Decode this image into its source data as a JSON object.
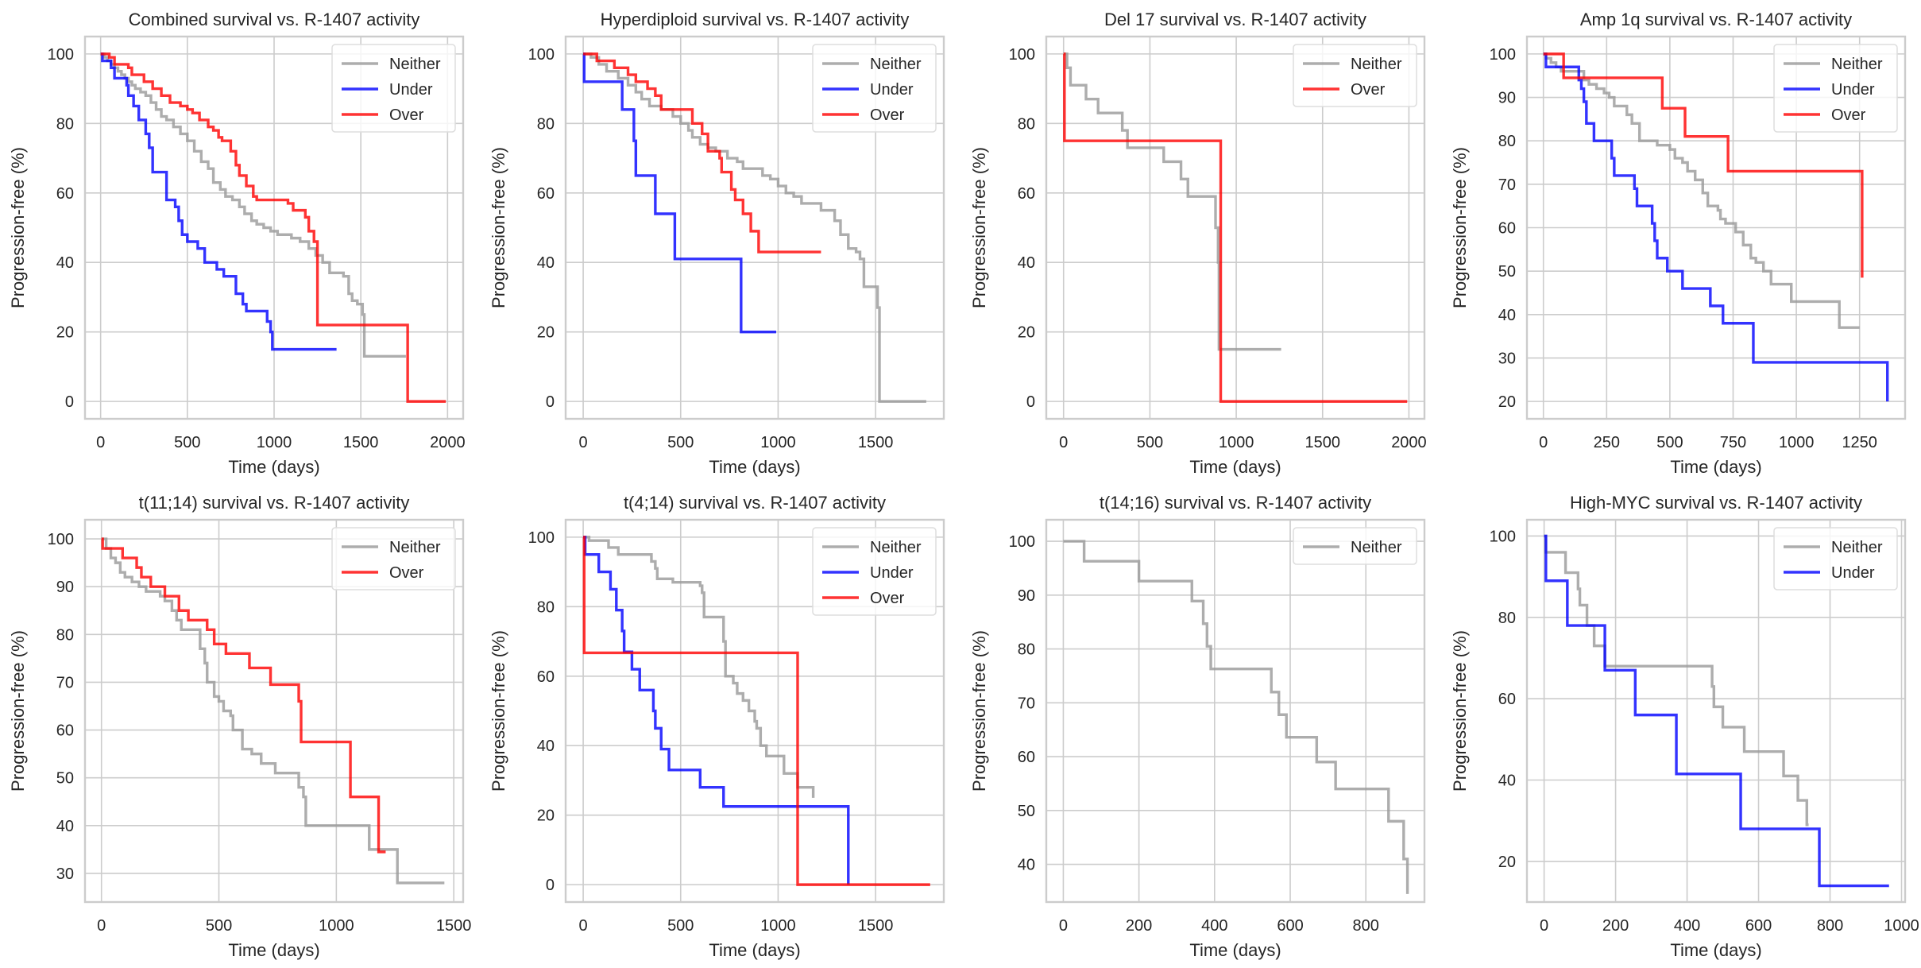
{
  "chart_data": [
    {
      "type": "line",
      "title": "Combined survival vs. R-1407 activity",
      "xlabel": "Time (days)",
      "ylabel": "Progression-free (%)",
      "xlim": [
        -90,
        2090
      ],
      "ylim": [
        -5,
        105
      ],
      "xticks": [
        0,
        500,
        1000,
        1500,
        2000
      ],
      "yticks": [
        0,
        20,
        40,
        60,
        80,
        100
      ],
      "legend": "top-right",
      "grid": true,
      "series": [
        {
          "name": "Neither",
          "color": "#999999",
          "x": [
            0,
            20,
            40,
            60,
            80,
            100,
            120,
            140,
            160,
            180,
            200,
            230,
            260,
            290,
            320,
            350,
            380,
            420,
            460,
            500,
            540,
            580,
            620,
            650,
            690,
            720,
            760,
            800,
            830,
            870,
            900,
            940,
            980,
            1020,
            1060,
            1100,
            1150,
            1200,
            1240,
            1280,
            1320,
            1360,
            1400,
            1430,
            1450,
            1480,
            1510,
            1520,
            1760
          ],
          "y": [
            100,
            99,
            98,
            97,
            96,
            95,
            94,
            93,
            92,
            91,
            90,
            89,
            88,
            86,
            84,
            82,
            81,
            79,
            77,
            75,
            72,
            69,
            67,
            63,
            61,
            59,
            58,
            56,
            54,
            52,
            51,
            50,
            49,
            48,
            48,
            47,
            46,
            44,
            42,
            40,
            37,
            37,
            36,
            31,
            29,
            28,
            25,
            13,
            13
          ]
        },
        {
          "name": "Under",
          "color": "#0000ff",
          "x": [
            0,
            10,
            60,
            80,
            150,
            160,
            190,
            220,
            260,
            280,
            300,
            370,
            380,
            430,
            450,
            470,
            500,
            560,
            600,
            670,
            710,
            780,
            820,
            840,
            960,
            980,
            990,
            1360
          ],
          "y": [
            100,
            98,
            96,
            93,
            91,
            88,
            85,
            81,
            77,
            73,
            66,
            66,
            58,
            56,
            52,
            48,
            46,
            44,
            40,
            38,
            36,
            31,
            28,
            26,
            23,
            20,
            15,
            15
          ]
        },
        {
          "name": "Over",
          "color": "#ff0000",
          "x": [
            0,
            50,
            80,
            160,
            180,
            250,
            300,
            350,
            400,
            460,
            500,
            530,
            570,
            620,
            650,
            680,
            700,
            750,
            780,
            800,
            840,
            880,
            900,
            1080,
            1110,
            1180,
            1200,
            1230,
            1250,
            1770,
            1990
          ],
          "y": [
            100,
            99,
            97,
            96,
            94,
            92,
            90,
            88,
            86,
            85,
            84,
            83,
            81,
            79,
            78,
            76,
            75,
            72,
            68,
            65,
            62,
            59,
            58,
            57,
            55,
            53,
            49,
            46,
            22,
            0,
            0
          ]
        }
      ]
    },
    {
      "type": "line",
      "title": "Hyperdiploid survival vs. R-1407 activity",
      "xlabel": "Time (days)",
      "ylabel": "Progression-free (%)",
      "xlim": [
        -90,
        1850
      ],
      "ylim": [
        -5,
        105
      ],
      "xticks": [
        0,
        500,
        1000,
        1500
      ],
      "yticks": [
        0,
        20,
        40,
        60,
        80,
        100
      ],
      "legend": "top-right",
      "grid": true,
      "series": [
        {
          "name": "Neither",
          "color": "#999999",
          "x": [
            0,
            40,
            80,
            120,
            180,
            230,
            270,
            300,
            340,
            400,
            460,
            500,
            540,
            560,
            600,
            640,
            680,
            740,
            790,
            820,
            880,
            920,
            960,
            1000,
            1040,
            1080,
            1120,
            1180,
            1220,
            1290,
            1320,
            1360,
            1400,
            1420,
            1440,
            1500,
            1510,
            1520,
            1760
          ],
          "y": [
            100,
            99,
            97,
            95,
            93,
            91,
            89,
            87,
            85,
            84,
            82,
            80,
            78,
            76,
            74,
            73,
            72,
            70,
            69,
            67,
            67,
            65,
            64,
            62,
            60,
            59,
            57,
            57,
            55,
            52,
            48,
            44,
            43,
            41,
            33,
            33,
            27,
            0,
            0
          ]
        },
        {
          "name": "Under",
          "color": "#0000ff",
          "x": [
            0,
            5,
            200,
            260,
            270,
            370,
            470,
            810,
            990
          ],
          "y": [
            100,
            92,
            84,
            75,
            65,
            54,
            41,
            20,
            20
          ]
        },
        {
          "name": "Over",
          "color": "#ff0000",
          "x": [
            0,
            70,
            160,
            230,
            270,
            330,
            370,
            400,
            520,
            560,
            610,
            640,
            700,
            710,
            760,
            780,
            820,
            860,
            900,
            1220
          ],
          "y": [
            100,
            98,
            96,
            94,
            92,
            90,
            88,
            84,
            84,
            80,
            77,
            72,
            70,
            66,
            61,
            58,
            54,
            49,
            43,
            43
          ]
        }
      ]
    },
    {
      "type": "line",
      "title": "Del 17 survival vs. R-1407 activity",
      "xlabel": "Time (days)",
      "ylabel": "Progression-free (%)",
      "xlim": [
        -100,
        2090
      ],
      "ylim": [
        -5,
        105
      ],
      "xticks": [
        0,
        500,
        1000,
        1500,
        2000
      ],
      "yticks": [
        0,
        20,
        40,
        60,
        80,
        100
      ],
      "legend": "top-right",
      "grid": true,
      "series": [
        {
          "name": "Neither",
          "color": "#999999",
          "x": [
            0,
            20,
            40,
            130,
            200,
            340,
            370,
            580,
            680,
            720,
            880,
            895,
            900,
            1260
          ],
          "y": [
            100,
            96,
            91,
            87,
            83,
            78,
            73,
            69,
            64,
            59,
            50,
            40,
            15,
            15
          ]
        },
        {
          "name": "Over",
          "color": "#ff0000",
          "x": [
            0,
            5,
            910,
            1990
          ],
          "y": [
            100,
            75,
            0,
            0
          ]
        }
      ]
    },
    {
      "type": "line",
      "title": "Amp 1q survival vs. R-1407 activity",
      "xlabel": "Time (days)",
      "ylabel": "Progression-free (%)",
      "xlim": [
        -65,
        1430
      ],
      "ylim": [
        16,
        104
      ],
      "xticks": [
        0,
        250,
        500,
        750,
        1000,
        1250
      ],
      "yticks": [
        20,
        30,
        40,
        50,
        60,
        70,
        80,
        90,
        100
      ],
      "legend": "top-right",
      "grid": true,
      "series": [
        {
          "name": "Neither",
          "color": "#999999",
          "x": [
            0,
            10,
            30,
            50,
            70,
            140,
            160,
            180,
            210,
            240,
            260,
            280,
            330,
            350,
            380,
            400,
            450,
            500,
            520,
            550,
            570,
            600,
            630,
            650,
            690,
            700,
            720,
            760,
            790,
            820,
            840,
            870,
            900,
            960,
            980,
            1170,
            1250
          ],
          "y": [
            100,
            99,
            98,
            97,
            96,
            96,
            94,
            93,
            92,
            91,
            90,
            88,
            86,
            84,
            80,
            80,
            79,
            78,
            76,
            75,
            73,
            71,
            68,
            65,
            64,
            62,
            61,
            59,
            56,
            53,
            52,
            50,
            47,
            47,
            43,
            37,
            37
          ]
        },
        {
          "name": "Under",
          "color": "#0000ff",
          "x": [
            0,
            10,
            140,
            150,
            160,
            170,
            200,
            270,
            280,
            360,
            370,
            430,
            440,
            450,
            490,
            550,
            660,
            710,
            830,
            1360
          ],
          "y": [
            100,
            97,
            94,
            92,
            89,
            84,
            80,
            76,
            72,
            69,
            65,
            61,
            57,
            53,
            50,
            46,
            42,
            38,
            29,
            20
          ]
        },
        {
          "name": "Over",
          "color": "#ff0000",
          "x": [
            0,
            80,
            470,
            560,
            730,
            1260
          ],
          "y": [
            100,
            94.5,
            87.5,
            81,
            73,
            48.5
          ]
        }
      ]
    },
    {
      "type": "line",
      "title": "t(11;14) survival vs. R-1407 activity",
      "xlabel": "Time (days)",
      "ylabel": "Progression-free (%)",
      "xlim": [
        -70,
        1540
      ],
      "ylim": [
        24,
        104
      ],
      "xticks": [
        0,
        500,
        1000,
        1500
      ],
      "yticks": [
        30,
        40,
        50,
        60,
        70,
        80,
        90,
        100
      ],
      "legend": "top-right",
      "grid": true,
      "series": [
        {
          "name": "Neither",
          "color": "#999999",
          "x": [
            0,
            20,
            40,
            60,
            80,
            100,
            130,
            160,
            190,
            250,
            270,
            300,
            320,
            340,
            420,
            440,
            450,
            480,
            500,
            520,
            550,
            560,
            600,
            640,
            680,
            740,
            840,
            860,
            870,
            1140,
            1260,
            1460
          ],
          "y": [
            100,
            98,
            96,
            95,
            93,
            92,
            91,
            90,
            89,
            88,
            87,
            85,
            83,
            81,
            77,
            74,
            70,
            67,
            66,
            64,
            63,
            60,
            56,
            55,
            53,
            51,
            48,
            46,
            40,
            35,
            28,
            28
          ]
        },
        {
          "name": "Over",
          "color": "#ff0000",
          "x": [
            0,
            5,
            90,
            150,
            170,
            210,
            270,
            330,
            370,
            450,
            480,
            530,
            630,
            720,
            840,
            850,
            1060,
            1180,
            1210
          ],
          "y": [
            100,
            98,
            96,
            94,
            92,
            90,
            88,
            85,
            83,
            81,
            78,
            76,
            73,
            69.5,
            66,
            57.5,
            46,
            34.5,
            34.5
          ]
        }
      ]
    },
    {
      "type": "line",
      "title": "t(4;14) survival vs. R-1407 activity",
      "xlabel": "Time (days)",
      "ylabel": "Progression-free (%)",
      "xlim": [
        -90,
        1850
      ],
      "ylim": [
        -5,
        105
      ],
      "xticks": [
        0,
        500,
        1000,
        1500
      ],
      "yticks": [
        0,
        20,
        40,
        60,
        80,
        100
      ],
      "legend": "top-right",
      "grid": true,
      "series": [
        {
          "name": "Neither",
          "color": "#999999",
          "x": [
            0,
            30,
            130,
            180,
            350,
            370,
            380,
            460,
            600,
            610,
            620,
            720,
            730,
            770,
            790,
            820,
            850,
            880,
            890,
            910,
            940,
            1030,
            1100,
            1180
          ],
          "y": [
            100,
            99,
            97,
            95,
            93,
            91,
            88,
            87,
            86,
            84,
            77,
            70,
            60,
            58,
            55,
            53,
            50,
            47,
            45,
            40,
            37,
            32,
            28,
            25
          ]
        },
        {
          "name": "Under",
          "color": "#0000ff",
          "x": [
            0,
            10,
            80,
            140,
            170,
            200,
            210,
            250,
            290,
            360,
            370,
            400,
            440,
            600,
            720,
            1360
          ],
          "y": [
            100,
            95,
            90,
            85,
            79,
            73,
            67,
            62,
            56,
            50,
            45,
            39,
            33,
            28,
            22.5,
            0
          ]
        },
        {
          "name": "Over",
          "color": "#ff0000",
          "x": [
            0,
            5,
            1100,
            1780
          ],
          "y": [
            100,
            66.7,
            0,
            0
          ]
        }
      ]
    },
    {
      "type": "line",
      "title": "t(14;16) survival vs. R-1407 activity",
      "xlabel": "Time (days)",
      "ylabel": "Progression-free (%)",
      "xlim": [
        -45,
        955
      ],
      "ylim": [
        33,
        104
      ],
      "xticks": [
        0,
        200,
        400,
        600,
        800
      ],
      "yticks": [
        40,
        50,
        60,
        70,
        80,
        90,
        100
      ],
      "legend": "top-right",
      "grid": true,
      "series": [
        {
          "name": "Neither",
          "color": "#999999",
          "x": [
            0,
            55,
            200,
            340,
            370,
            380,
            390,
            550,
            570,
            590,
            670,
            720,
            860,
            900,
            910
          ],
          "y": [
            100,
            96.3,
            92.6,
            88.9,
            84.7,
            80.5,
            76.3,
            72,
            67.8,
            63.6,
            59,
            54,
            48,
            41,
            34.5
          ]
        }
      ]
    },
    {
      "type": "line",
      "title": "High-MYC survival vs. R-1407 activity",
      "xlabel": "Time (days)",
      "ylabel": "Progression-free (%)",
      "xlim": [
        -48,
        1010
      ],
      "ylim": [
        10,
        104
      ],
      "xticks": [
        0,
        200,
        400,
        600,
        800,
        1000
      ],
      "yticks": [
        20,
        40,
        60,
        80,
        100
      ],
      "legend": "top-right",
      "grid": true,
      "series": [
        {
          "name": "Neither",
          "color": "#999999",
          "x": [
            0,
            5,
            60,
            95,
            100,
            120,
            140,
            170,
            250,
            470,
            475,
            500,
            560,
            670,
            710,
            735,
            740
          ],
          "y": [
            100,
            96,
            91,
            87,
            83,
            78,
            73,
            68,
            68,
            63,
            58,
            53,
            47,
            41,
            35,
            29,
            29
          ]
        },
        {
          "name": "Under",
          "color": "#0000ff",
          "x": [
            0,
            5,
            65,
            170,
            255,
            370,
            550,
            770,
            965
          ],
          "y": [
            100,
            89,
            78,
            67,
            56,
            41.5,
            28,
            14,
            14
          ]
        }
      ]
    }
  ]
}
